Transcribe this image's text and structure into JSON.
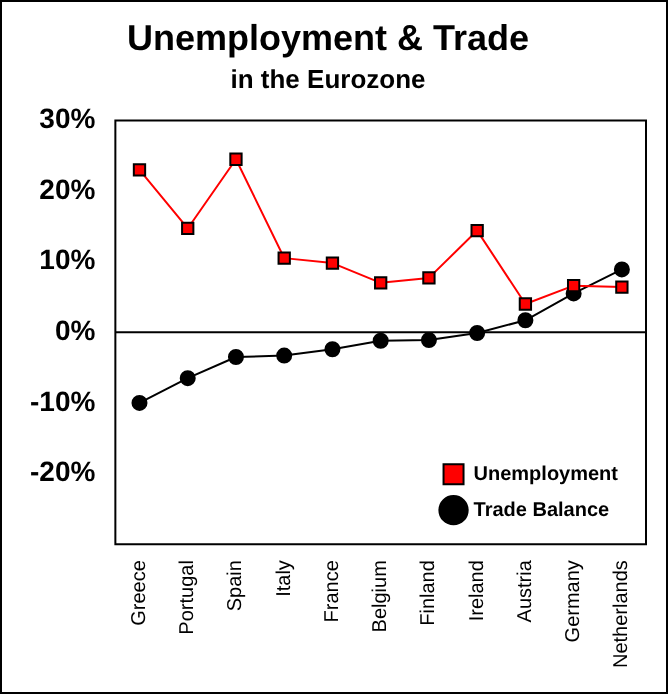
{
  "chart_data": {
    "type": "line",
    "title": "Unemployment & Trade",
    "subtitle": "in the Eurozone",
    "categories": [
      "Greece",
      "Portugal",
      "Spain",
      "Italy",
      "France",
      "Belgium",
      "Finland",
      "Ireland",
      "Austria",
      "Germany",
      "Netherlands"
    ],
    "series": [
      {
        "name": "Unemployment",
        "color": "#ff0000",
        "marker": "square",
        "values": [
          23.0,
          14.7,
          24.5,
          10.5,
          9.8,
          7.0,
          7.7,
          14.4,
          4.0,
          6.6,
          6.4
        ]
      },
      {
        "name": "Trade Balance",
        "color": "#000000",
        "marker": "circle",
        "values": [
          -10.0,
          -6.5,
          -3.5,
          -3.3,
          -2.4,
          -1.2,
          -1.1,
          -0.1,
          1.7,
          5.5,
          8.9
        ]
      }
    ],
    "ylim": [
      -30,
      30
    ],
    "yticks": [
      {
        "value": -30,
        "label": null
      },
      {
        "value": -20,
        "label": "-20%"
      },
      {
        "value": -10,
        "label": "-10%"
      },
      {
        "value": 0,
        "label": "0%"
      },
      {
        "value": 10,
        "label": "10%"
      },
      {
        "value": 20,
        "label": "20%"
      },
      {
        "value": 30,
        "label": "30%"
      }
    ],
    "ref_lines": [
      {
        "axis": "y",
        "value": 0,
        "color": "#000000"
      }
    ],
    "grid": false,
    "legend": "bottom right",
    "line_style": "solid"
  }
}
